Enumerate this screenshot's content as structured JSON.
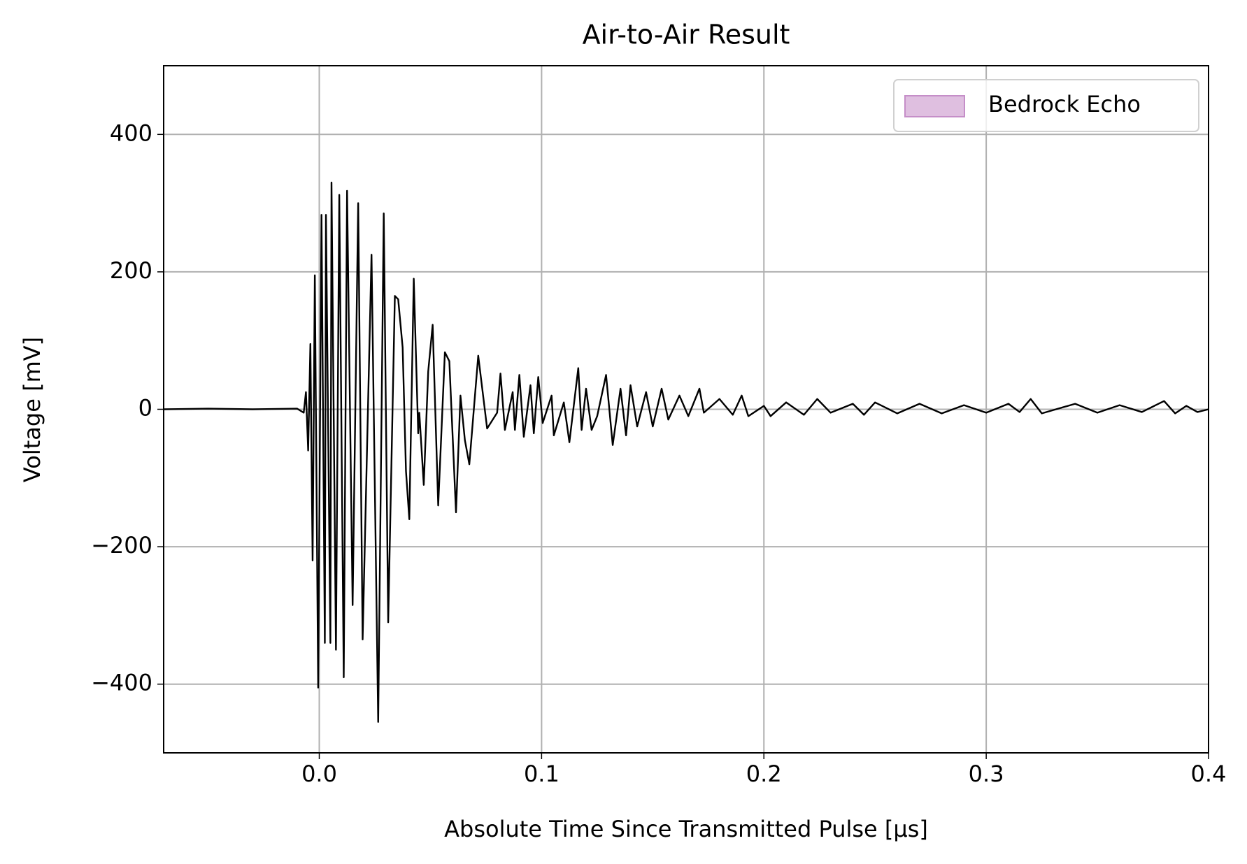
{
  "chart_data": {
    "type": "line",
    "title": "Air-to-Air Result",
    "xlabel": "Absolute Time Since Transmitted Pulse [μs]",
    "ylabel": "Voltage [mV]",
    "x": [
      -0.07,
      -0.05,
      -0.03,
      -0.01,
      -0.007,
      -0.006,
      -0.005,
      -0.004,
      -0.003,
      -0.002,
      -0.0005,
      0.001,
      0.0025,
      0.003,
      0.005,
      0.0055,
      0.0075,
      0.009,
      0.011,
      0.0125,
      0.015,
      0.0175,
      0.0195,
      0.0235,
      0.0265,
      0.029,
      0.031,
      0.034,
      0.0355,
      0.0375,
      0.039,
      0.0405,
      0.0425,
      0.0445,
      0.045,
      0.047,
      0.049,
      0.051,
      0.0535,
      0.0565,
      0.0585,
      0.0615,
      0.0635,
      0.0655,
      0.0675,
      0.0715,
      0.0755,
      0.08,
      0.0815,
      0.0835,
      0.087,
      0.088,
      0.09,
      0.092,
      0.095,
      0.0965,
      0.0985,
      0.1005,
      0.1045,
      0.1055,
      0.11,
      0.1125,
      0.1165,
      0.118,
      0.12,
      0.1225,
      0.125,
      0.129,
      0.132,
      0.1355,
      0.138,
      0.14,
      0.143,
      0.147,
      0.15,
      0.154,
      0.157,
      0.162,
      0.166,
      0.171,
      0.173,
      0.18,
      0.186,
      0.19,
      0.193,
      0.2,
      0.203,
      0.21,
      0.218,
      0.224,
      0.23,
      0.24,
      0.245,
      0.25,
      0.26,
      0.27,
      0.28,
      0.29,
      0.3,
      0.31,
      0.315,
      0.32,
      0.325,
      0.34,
      0.35,
      0.36,
      0.37,
      0.38,
      0.385,
      0.39,
      0.395,
      0.4
    ],
    "series": [
      {
        "color": "#000000",
        "values": [
          0,
          1,
          0,
          1,
          -5,
          25,
          -60,
          95,
          -220,
          195,
          -405,
          283,
          -340,
          283,
          -340,
          330,
          -350,
          312,
          -390,
          318,
          -285,
          300,
          -335,
          225,
          -455,
          285,
          -310,
          165,
          160,
          90,
          -90,
          -160,
          190,
          -35,
          -5,
          -110,
          55,
          123,
          -140,
          83,
          70,
          -150,
          20,
          -45,
          -80,
          78,
          -28,
          -5,
          52,
          -30,
          25,
          -30,
          50,
          -40,
          35,
          -35,
          47,
          -20,
          20,
          -38,
          10,
          -48,
          60,
          -30,
          30,
          -30,
          -10,
          50,
          -52,
          30,
          -38,
          35,
          -25,
          25,
          -25,
          30,
          -15,
          20,
          -10,
          30,
          -5,
          15,
          -8,
          20,
          -10,
          5,
          -10,
          10,
          -8,
          15,
          -5,
          8,
          -8,
          10,
          -6,
          8,
          -6,
          6,
          -5,
          8,
          -4,
          15,
          -6,
          8,
          -5,
          6,
          -4,
          12,
          -6,
          5,
          -4,
          0
        ]
      }
    ],
    "xlim": [
      -0.07,
      0.4
    ],
    "ylim": [
      -500,
      500
    ],
    "xticks": [
      {
        "value": 0,
        "label": "0.0"
      },
      0.1,
      0.2,
      0.3,
      0.4
    ],
    "yticks": [
      {
        "value": -400,
        "label": "−400"
      },
      {
        "value": -200,
        "label": "−200"
      },
      0,
      200,
      400
    ],
    "grid": true,
    "grid_color": "#b0b0b0",
    "legend": {
      "loc": "upper right",
      "entries": [
        {
          "label": "Bedrock Echo",
          "color": "#dfbfe0",
          "edgecolor": "#c58ec8"
        }
      ]
    }
  }
}
